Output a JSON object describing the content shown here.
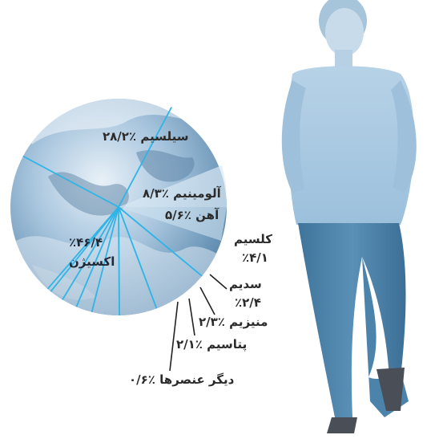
{
  "chart_data": {
    "type": "pie",
    "slices": [
      {
        "name": "سیلسیم",
        "value": 28.2,
        "label": "سیلسیم ٪۲۸/۲"
      },
      {
        "name": "آلومینیم",
        "value": 8.3,
        "label": "آلومینیم ٪۸/۳"
      },
      {
        "name": "آهن",
        "value": 5.6,
        "label": "آهن ٪۵/۶"
      },
      {
        "name": "کلسیم",
        "value": 4.1,
        "label": "کلسیم",
        "label2": "٪۴/۱"
      },
      {
        "name": "سدیم",
        "value": 2.4,
        "label": "سدیم",
        "label2": "٪۲/۴"
      },
      {
        "name": "منیزیم",
        "value": 2.3,
        "label": "منیزیم ٪۲/۳"
      },
      {
        "name": "پتاسیم",
        "value": 2.1,
        "label": "پتاسیم ٪۲/۱"
      },
      {
        "name": "دیگر عنصرها",
        "value": 0.6,
        "label": "دیگر عنصرها ٪۰/۶"
      },
      {
        "name": "اکسیژن",
        "value": 46.4,
        "label": "٪۴۶/۴",
        "label2": "اکسیژن"
      }
    ]
  },
  "colors": {
    "ocean": "#6f9cc0",
    "cloud": "#eef3f8",
    "divider": "#2fb4e6",
    "highlight": "#dce9f3",
    "shirt": "#a7c8e0",
    "jeans": "#4f86ad"
  }
}
